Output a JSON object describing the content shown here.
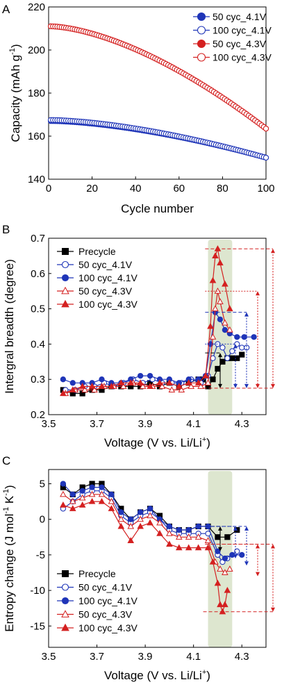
{
  "colors": {
    "blue": "#1f35b8",
    "red": "#d42020",
    "black": "#000000",
    "band": "#dde6cf"
  },
  "chart_data": [
    {
      "panel": "A",
      "type": "scatter",
      "xlabel": "Cycle number",
      "ylabel": "Capacity (mAh g⁻¹)",
      "ylabel_main": "Capacity (mAh g",
      "ylabel_sup": "-1",
      "ylabel_end": ")",
      "xlim": [
        0,
        100
      ],
      "ylim": [
        140,
        220
      ],
      "xticks": [
        "0",
        "20",
        "40",
        "60",
        "80",
        "100"
      ],
      "yticks": [
        "140",
        "160",
        "180",
        "200",
        "220"
      ],
      "legend_position": "top-right",
      "x": {
        "start": 1,
        "end": 100,
        "step": 1
      },
      "series": [
        {
          "name": "50 cyc_4.1V",
          "color": "blue",
          "marker": "filled",
          "start": 167.0,
          "end": 150.0
        },
        {
          "name": "100 cyc_4.1V",
          "color": "blue",
          "marker": "open",
          "start": 167.5,
          "end": 150.0
        },
        {
          "name": "50 cyc_4.3V",
          "color": "red",
          "marker": "filled",
          "start": 211.0,
          "end": 163.5
        },
        {
          "name": "100 cyc_4.3V",
          "color": "red",
          "marker": "open",
          "start": 211.0,
          "end": 163.5
        }
      ]
    },
    {
      "panel": "B",
      "type": "line",
      "xlabel": "Voltage (V vs. Li/Li⁺)",
      "xlabel_main": "Voltage (V vs. Li/Li",
      "xlabel_sup": "+",
      "xlabel_end": ")",
      "ylabel": "Intergral breadth (degree)",
      "xlim": [
        3.5,
        4.4
      ],
      "ylim": [
        0.2,
        0.7
      ],
      "xticks": [
        "3.5",
        "3.7",
        "3.9",
        "4.1",
        "4.3"
      ],
      "yticks": [
        "0.2",
        "0.3",
        "0.4",
        "0.5",
        "0.6",
        "0.7"
      ],
      "shaded_band": [
        4.16,
        4.26
      ],
      "legend_position": "top-left",
      "series": [
        {
          "name": "Precycle",
          "color": "black",
          "marker": "square-filled",
          "x": [
            3.56,
            3.6,
            3.64,
            3.68,
            3.72,
            3.76,
            3.8,
            3.84,
            3.88,
            3.92,
            3.96,
            4.0,
            4.04,
            4.08,
            4.12,
            4.14,
            4.16,
            4.18,
            4.2,
            4.22,
            4.24,
            4.26,
            4.28,
            4.3
          ],
          "y": [
            0.27,
            0.26,
            0.26,
            0.27,
            0.27,
            0.28,
            0.28,
            0.28,
            0.28,
            0.29,
            0.28,
            0.29,
            0.28,
            0.29,
            0.3,
            0.3,
            0.28,
            0.3,
            0.33,
            0.35,
            0.36,
            0.36,
            0.36,
            0.37
          ]
        },
        {
          "name": "50 cyc_4.1V",
          "color": "blue",
          "marker": "circle-open",
          "x": [
            3.57,
            3.61,
            3.65,
            3.69,
            3.73,
            3.77,
            3.81,
            3.85,
            3.89,
            3.93,
            3.97,
            4.01,
            4.05,
            4.09,
            4.13,
            4.16,
            4.18,
            4.2,
            4.22,
            4.24,
            4.26,
            4.28,
            4.3,
            4.32
          ],
          "y": [
            0.27,
            0.27,
            0.28,
            0.28,
            0.29,
            0.28,
            0.29,
            0.3,
            0.29,
            0.3,
            0.29,
            0.29,
            0.29,
            0.3,
            0.29,
            0.31,
            0.36,
            0.4,
            0.39,
            0.36,
            0.38,
            0.4,
            0.39,
            0.39
          ]
        },
        {
          "name": "100 cyc_4.1V",
          "color": "blue",
          "marker": "circle-filled",
          "x": [
            3.56,
            3.6,
            3.64,
            3.68,
            3.72,
            3.76,
            3.8,
            3.84,
            3.88,
            3.92,
            3.96,
            4.0,
            4.04,
            4.08,
            4.12,
            4.15,
            4.17,
            4.19,
            4.21,
            4.23,
            4.25,
            4.28,
            4.31,
            4.35
          ],
          "y": [
            0.3,
            0.29,
            0.29,
            0.29,
            0.3,
            0.29,
            0.29,
            0.3,
            0.31,
            0.31,
            0.3,
            0.3,
            0.29,
            0.3,
            0.3,
            0.31,
            0.4,
            0.49,
            0.47,
            0.44,
            0.43,
            0.42,
            0.42,
            0.42
          ]
        },
        {
          "name": "50 cyc_4.3V",
          "color": "red",
          "marker": "triangle-open",
          "x": [
            3.57,
            3.61,
            3.65,
            3.69,
            3.73,
            3.77,
            3.81,
            3.85,
            3.89,
            3.93,
            3.97,
            4.01,
            4.05,
            4.09,
            4.13,
            4.16,
            4.18,
            4.19,
            4.2,
            4.21,
            4.23,
            4.25
          ],
          "y": [
            0.26,
            0.27,
            0.27,
            0.27,
            0.28,
            0.28,
            0.28,
            0.29,
            0.28,
            0.28,
            0.28,
            0.27,
            0.27,
            0.28,
            0.28,
            0.29,
            0.42,
            0.5,
            0.55,
            0.52,
            0.46,
            0.44
          ]
        },
        {
          "name": "100 cyc_4.3V",
          "color": "red",
          "marker": "triangle-filled",
          "x": [
            3.56,
            3.6,
            3.64,
            3.68,
            3.72,
            3.76,
            3.8,
            3.84,
            3.88,
            3.92,
            3.96,
            4.0,
            4.04,
            4.08,
            4.12,
            4.15,
            4.17,
            4.18,
            4.19,
            4.2,
            4.21,
            4.23,
            4.25
          ],
          "y": [
            0.26,
            0.27,
            0.28,
            0.28,
            0.28,
            0.28,
            0.29,
            0.29,
            0.29,
            0.28,
            0.29,
            0.29,
            0.28,
            0.29,
            0.29,
            0.31,
            0.45,
            0.58,
            0.65,
            0.67,
            0.63,
            0.57,
            0.5
          ]
        }
      ],
      "range_markers": [
        {
          "color": "black",
          "low": 0.275,
          "high": 0.375
        },
        {
          "color": "blue",
          "low": 0.275,
          "high": 0.4
        },
        {
          "color": "blue",
          "low": 0.275,
          "high": 0.49
        },
        {
          "color": "red",
          "low": 0.275,
          "high": 0.55
        },
        {
          "color": "red",
          "low": 0.275,
          "high": 0.67
        }
      ]
    },
    {
      "panel": "C",
      "type": "line",
      "xlabel": "Voltage (V vs. Li/Li⁺)",
      "xlabel_main": "Voltage (V vs. Li/Li",
      "xlabel_sup": "+",
      "xlabel_end": ")",
      "ylabel": "Entropy change (J mol⁻¹ K⁻¹)",
      "ylabel_main": "Entropy change (J mol",
      "ylabel_sup1": "-1",
      "ylabel_mid": " K",
      "ylabel_sup2": "-1",
      "ylabel_end": ")",
      "xlim": [
        3.5,
        4.4
      ],
      "ylim": [
        -18,
        7
      ],
      "xticks": [
        "3.5",
        "3.7",
        "3.9",
        "4.1",
        "4.3"
      ],
      "yticks": [
        "-15",
        "-10",
        "-5",
        "0",
        "5"
      ],
      "shaded_band": [
        4.16,
        4.26
      ],
      "legend_position": "bottom-left",
      "series": [
        {
          "name": "Precycle",
          "color": "black",
          "marker": "square-filled",
          "x": [
            3.56,
            3.6,
            3.64,
            3.68,
            3.72,
            3.76,
            3.8,
            3.84,
            3.88,
            3.92,
            3.96,
            4.0,
            4.04,
            4.08,
            4.12,
            4.16,
            4.2,
            4.24,
            4.28
          ],
          "y": [
            4.5,
            3.5,
            4.5,
            5.0,
            5.0,
            3.5,
            1.5,
            0.0,
            1.0,
            1.5,
            0.5,
            -1.0,
            -1.5,
            -1.5,
            -1.0,
            -1.0,
            -2.5,
            -2.5,
            -1.5
          ]
        },
        {
          "name": "50 cyc_4.1V",
          "color": "blue",
          "marker": "circle-open",
          "x": [
            3.56,
            3.6,
            3.64,
            3.68,
            3.72,
            3.76,
            3.8,
            3.84,
            3.88,
            3.92,
            3.96,
            4.0,
            4.04,
            4.08,
            4.12,
            4.16,
            4.2,
            4.22,
            4.24,
            4.28
          ],
          "y": [
            1.5,
            2.5,
            3.5,
            4.0,
            4.0,
            3.0,
            0.5,
            -0.5,
            0.5,
            1.0,
            0.0,
            -1.5,
            -2.0,
            -2.0,
            -2.0,
            -2.0,
            -5.0,
            -6.0,
            -5.5,
            -4.5
          ]
        },
        {
          "name": "100 cyc_4.1V",
          "color": "blue",
          "marker": "circle-filled",
          "x": [
            3.56,
            3.6,
            3.64,
            3.68,
            3.72,
            3.76,
            3.8,
            3.84,
            3.88,
            3.92,
            3.96,
            4.0,
            4.04,
            4.08,
            4.12,
            4.16,
            4.2,
            4.23,
            4.26,
            4.3
          ],
          "y": [
            5.0,
            3.5,
            4.0,
            4.5,
            4.5,
            3.5,
            1.0,
            0.0,
            1.0,
            1.5,
            0.0,
            -1.0,
            -1.5,
            -1.5,
            -1.0,
            -1.0,
            -4.5,
            -5.5,
            -5.0,
            -5.0
          ]
        },
        {
          "name": "50 cyc_4.3V",
          "color": "red",
          "marker": "triangle-open",
          "x": [
            3.56,
            3.6,
            3.64,
            3.68,
            3.72,
            3.76,
            3.8,
            3.84,
            3.88,
            3.92,
            3.96,
            4.0,
            4.04,
            4.08,
            4.12,
            4.16,
            4.19,
            4.21,
            4.23,
            4.25
          ],
          "y": [
            3.5,
            2.5,
            3.0,
            3.5,
            3.5,
            2.5,
            0.0,
            -1.0,
            0.0,
            0.5,
            -0.5,
            -2.0,
            -2.5,
            -2.5,
            -2.5,
            -3.0,
            -6.0,
            -7.0,
            -7.5,
            -7.0
          ]
        },
        {
          "name": "100 cyc_4.3V",
          "color": "red",
          "marker": "triangle-filled",
          "x": [
            3.56,
            3.6,
            3.64,
            3.68,
            3.72,
            3.76,
            3.8,
            3.84,
            3.88,
            3.92,
            3.96,
            4.0,
            4.04,
            4.08,
            4.12,
            4.16,
            4.18,
            4.2,
            4.21,
            4.22,
            4.23,
            4.24
          ],
          "y": [
            2.0,
            1.5,
            2.0,
            2.5,
            2.5,
            1.5,
            -1.0,
            -3.0,
            -1.0,
            -0.5,
            -2.0,
            -3.5,
            -4.0,
            -4.0,
            -4.0,
            -4.0,
            -6.0,
            -9.0,
            -12.0,
            -13.0,
            -12.0,
            -10.0
          ]
        }
      ],
      "range_markers": [
        {
          "color": "black",
          "low": -4.5,
          "high": -1.0
        },
        {
          "color": "blue",
          "low": -5.5,
          "high": -1.0
        },
        {
          "color": "blue",
          "low": -6.5,
          "high": -1.0
        },
        {
          "color": "red",
          "low": -8.0,
          "high": -3.5
        },
        {
          "color": "red",
          "low": -13.0,
          "high": -3.5
        }
      ]
    }
  ],
  "panel_labels": [
    "A",
    "B",
    "C"
  ]
}
